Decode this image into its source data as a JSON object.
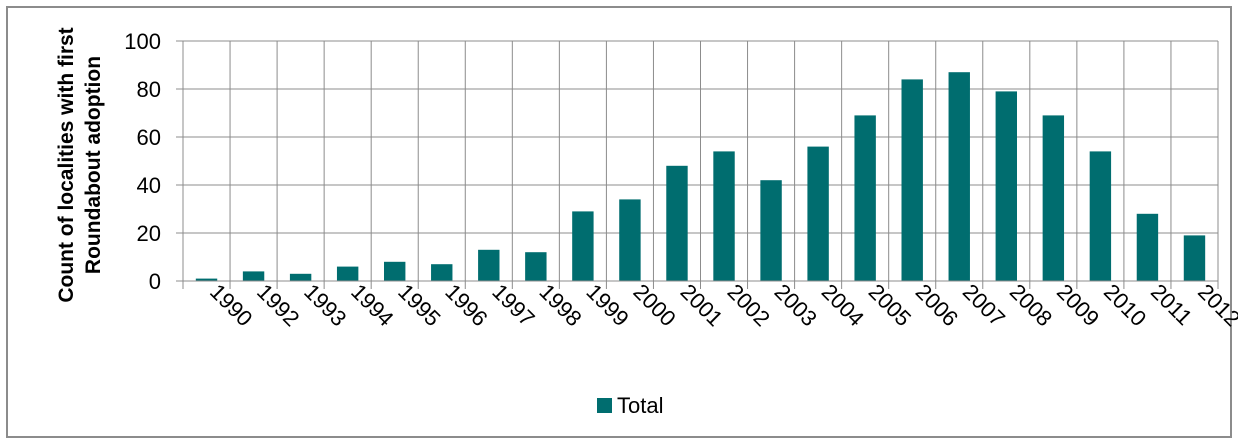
{
  "chart_data": {
    "type": "bar",
    "categories": [
      "1990",
      "1992",
      "1993",
      "1994",
      "1995",
      "1996",
      "1997",
      "1998",
      "1999",
      "2000",
      "2001",
      "2002",
      "2003",
      "2004",
      "2005",
      "2006",
      "2007",
      "2008",
      "2009",
      "2010",
      "2011",
      "2012"
    ],
    "series": [
      {
        "name": "Total",
        "color": "#006d6f",
        "values": [
          1,
          4,
          3,
          6,
          8,
          7,
          13,
          12,
          29,
          34,
          48,
          54,
          42,
          56,
          69,
          84,
          87,
          79,
          69,
          54,
          28,
          19
        ]
      }
    ],
    "title": "",
    "xlabel": "",
    "ylabel_lines": [
      "Count of localities with first",
      "Roundabout adoption"
    ],
    "ylim": [
      0,
      100
    ],
    "yticks": [
      "0",
      "20",
      "40",
      "60",
      "80",
      "100"
    ],
    "grid": true,
    "legend_position": "bottom",
    "legend_label": "Total"
  }
}
